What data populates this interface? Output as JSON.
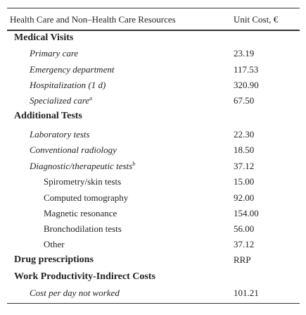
{
  "table": {
    "header": [
      "Health Care and Non–Health Care Resources",
      "Unit Cost, €"
    ],
    "rows": [
      {
        "label": "Medical Visits"
      },
      {
        "label": "Primary care",
        "value": "23.19"
      },
      {
        "label": "Emergency department",
        "value": "117.53"
      },
      {
        "label": "Hospitalization (1 d)",
        "value": "320.90"
      },
      {
        "label": "Specialized care",
        "note": "a",
        "value": "67.50"
      },
      {
        "label": "Additional Tests"
      },
      {
        "label": "Laboratory tests",
        "value": "22.30"
      },
      {
        "label": "Conventional radiology",
        "value": "18.50"
      },
      {
        "label": "Diagnostic/therapeutic tests",
        "note": "b",
        "value": "37.12"
      },
      {
        "label": "Spirometry/skin tests",
        "value": "15.00"
      },
      {
        "label": "Computed tomography",
        "value": "92.00"
      },
      {
        "label": "Magnetic resonance",
        "value": "154.00"
      },
      {
        "label": "Bronchodilation tests",
        "value": "56.00"
      },
      {
        "label": "Other",
        "value": "37.12"
      },
      {
        "label": "Drug prescriptions",
        "value": "RRP"
      },
      {
        "label": "Work Productivity-Indirect Costs"
      },
      {
        "label": "Cost per day not worked",
        "value": "101.21"
      }
    ]
  }
}
